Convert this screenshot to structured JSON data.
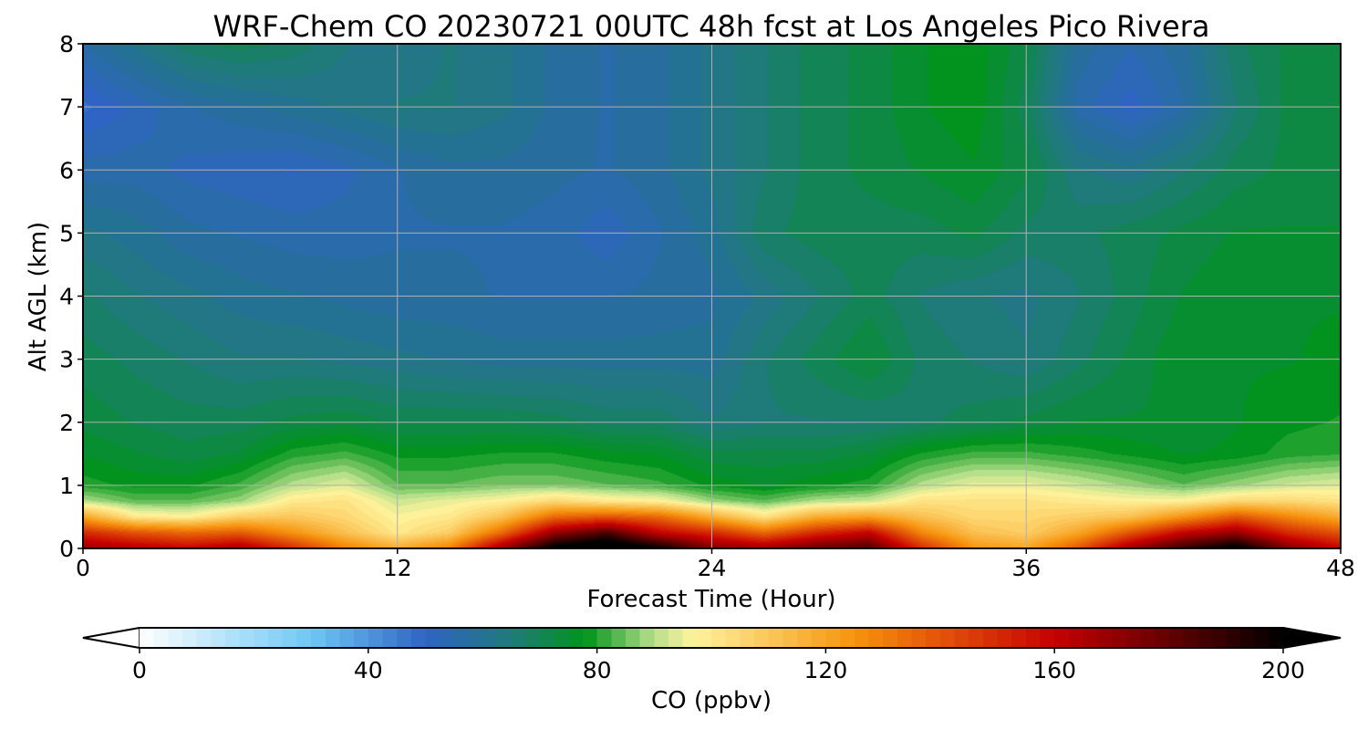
{
  "chart_data": {
    "type": "heatmap",
    "title": "WRF-Chem CO  20230721 00UTC 48h fcst at Los Angeles Pico Rivera",
    "xlabel": "Forecast Time (Hour)",
    "ylabel": "Alt AGL (km)",
    "xlim": [
      0,
      48
    ],
    "ylim": [
      0,
      8
    ],
    "x_ticks": [
      "0",
      "12",
      "24",
      "36",
      "48"
    ],
    "y_ticks": [
      "0",
      "1",
      "2",
      "3",
      "4",
      "5",
      "6",
      "7",
      "8"
    ],
    "grid": true,
    "colorbar": {
      "label": "CO  (ppbv)",
      "min": 0,
      "max": 200,
      "tick_values": [
        0,
        40,
        80,
        120,
        160,
        200
      ],
      "tick_labels": [
        "0",
        "40",
        "80",
        "120",
        "160",
        "200"
      ],
      "extend": "both",
      "placement": "bottom",
      "colors": [
        "#ffffff",
        "#6ec8f5",
        "#2f63c4",
        "#1f7a7a",
        "#00941a",
        "#b8e08c",
        "#fff39c",
        "#f7930e",
        "#c70000",
        "#000000"
      ],
      "color_stops": [
        0,
        30,
        50,
        65,
        78,
        90,
        97,
        125,
        160,
        200
      ]
    },
    "time_hours": [
      0,
      2,
      4,
      6,
      8,
      10,
      12,
      14,
      16,
      18,
      20,
      22,
      24,
      26,
      28,
      30,
      32,
      34,
      36,
      38,
      40,
      42,
      44,
      46,
      48
    ],
    "altitude_km": [
      0,
      0.25,
      0.5,
      0.75,
      1,
      1.5,
      2,
      3,
      4,
      5,
      6,
      7,
      8
    ],
    "co_ppbv": [
      [
        170,
        165,
        160,
        168,
        150,
        130,
        118,
        130,
        170,
        205,
        215,
        200,
        175,
        170,
        180,
        185,
        150,
        125,
        120,
        140,
        170,
        190,
        205,
        175,
        160
      ],
      [
        150,
        140,
        135,
        138,
        125,
        112,
        100,
        108,
        135,
        170,
        185,
        160,
        150,
        135,
        150,
        160,
        128,
        112,
        108,
        120,
        140,
        160,
        170,
        150,
        140
      ],
      [
        120,
        100,
        98,
        108,
        110,
        105,
        97,
        100,
        112,
        135,
        140,
        135,
        118,
        102,
        118,
        122,
        112,
        105,
        105,
        108,
        112,
        125,
        140,
        128,
        118
      ],
      [
        90,
        84,
        84,
        88,
        100,
        102,
        92,
        95,
        98,
        105,
        100,
        98,
        88,
        84,
        90,
        92,
        102,
        102,
        102,
        100,
        98,
        98,
        105,
        105,
        102
      ],
      [
        80,
        78,
        78,
        82,
        90,
        94,
        84,
        84,
        86,
        86,
        84,
        82,
        78,
        76,
        78,
        80,
        90,
        95,
        95,
        92,
        88,
        84,
        88,
        92,
        94
      ],
      [
        76,
        74,
        72,
        74,
        80,
        82,
        78,
        78,
        79,
        79,
        77,
        76,
        72,
        72,
        72,
        74,
        79,
        82,
        82,
        80,
        78,
        76,
        77,
        80,
        81
      ],
      [
        73,
        71,
        70,
        70,
        72,
        73,
        71,
        71,
        71,
        70,
        68,
        68,
        64,
        66,
        66,
        66,
        68,
        70,
        72,
        74,
        74,
        74,
        76,
        78,
        79
      ],
      [
        70,
        68,
        66,
        64,
        64,
        63,
        62,
        61,
        60,
        60,
        60,
        60,
        60,
        66,
        70,
        74,
        68,
        66,
        64,
        68,
        72,
        76,
        76,
        76,
        77
      ],
      [
        67,
        64,
        62,
        60,
        59,
        58,
        57,
        57,
        56,
        56,
        56,
        57,
        58,
        62,
        66,
        70,
        66,
        64,
        63,
        66,
        70,
        74,
        76,
        76,
        76
      ],
      [
        62,
        60,
        57,
        56,
        55,
        55,
        56,
        56,
        56,
        55,
        52,
        56,
        60,
        68,
        70,
        70,
        70,
        72,
        68,
        68,
        70,
        72,
        74,
        74,
        74
      ],
      [
        55,
        55,
        53,
        52,
        51,
        53,
        56,
        58,
        58,
        57,
        56,
        58,
        62,
        66,
        70,
        72,
        74,
        76,
        72,
        64,
        62,
        66,
        70,
        72,
        72
      ],
      [
        48,
        52,
        56,
        58,
        60,
        62,
        64,
        64,
        62,
        58,
        56,
        58,
        62,
        66,
        70,
        72,
        76,
        78,
        70,
        55,
        50,
        56,
        66,
        72,
        74
      ],
      [
        56,
        62,
        68,
        70,
        68,
        64,
        62,
        64,
        62,
        58,
        56,
        58,
        62,
        66,
        70,
        72,
        76,
        78,
        72,
        58,
        54,
        58,
        68,
        72,
        72
      ]
    ]
  }
}
